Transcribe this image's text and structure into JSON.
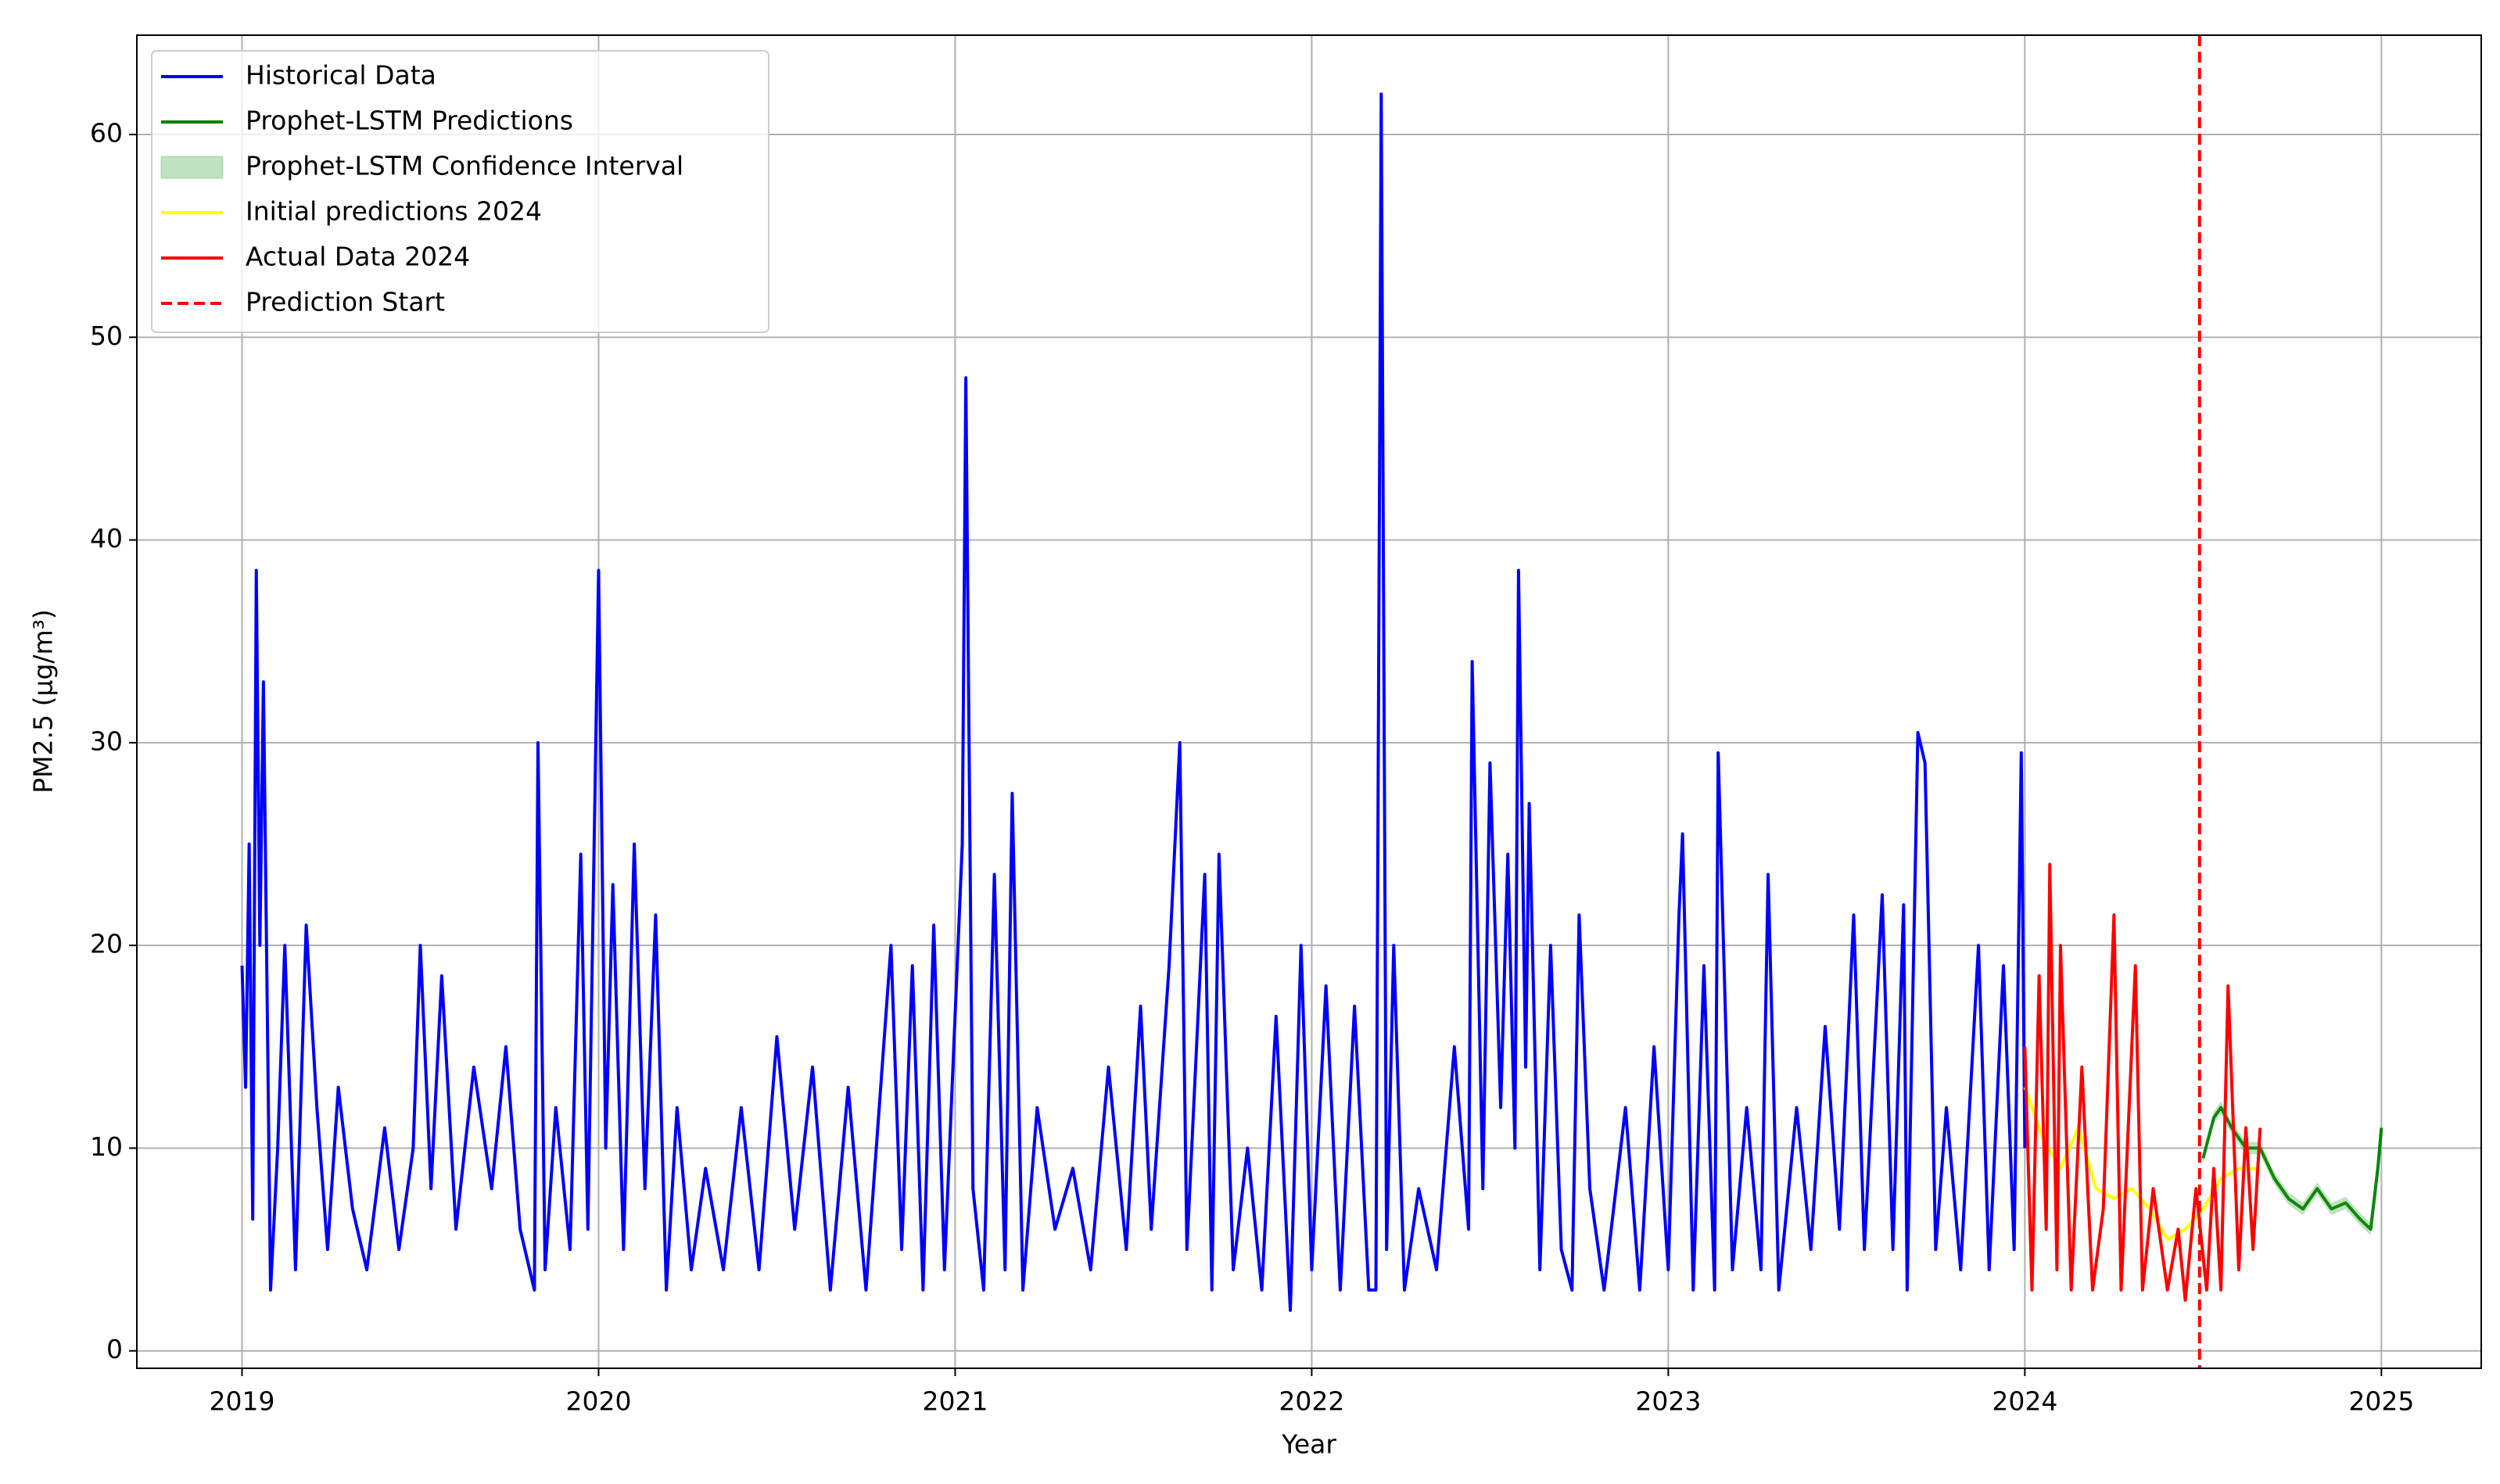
{
  "chart_data": {
    "type": "line",
    "xlabel": "Year",
    "ylabel": "PM2.5 (µg/m³)",
    "xlim": [
      2018.705,
      2025.28
    ],
    "ylim": [
      -0.86,
      64.9
    ],
    "xticks": [
      2019,
      2020,
      2021,
      2022,
      2023,
      2024,
      2025
    ],
    "yticks": [
      0,
      10,
      20,
      30,
      40,
      50,
      60
    ],
    "grid": true,
    "legend": "upper left",
    "series": [
      {
        "name": "Historical Data",
        "color": "#0000ff",
        "x": [
          2019.0,
          2019.01,
          2019.02,
          2019.03,
          2019.04,
          2019.05,
          2019.06,
          2019.08,
          2019.1,
          2019.12,
          2019.15,
          2019.18,
          2019.21,
          2019.24,
          2019.27,
          2019.31,
          2019.35,
          2019.4,
          2019.44,
          2019.48,
          2019.5,
          2019.53,
          2019.56,
          2019.6,
          2019.65,
          2019.7,
          2019.74,
          2019.78,
          2019.82,
          2019.83,
          2019.85,
          2019.88,
          2019.92,
          2019.95,
          2019.97,
          2020.0,
          2020.02,
          2020.04,
          2020.07,
          2020.1,
          2020.13,
          2020.16,
          2020.19,
          2020.22,
          2020.26,
          2020.3,
          2020.35,
          2020.4,
          2020.45,
          2020.5,
          2020.55,
          2020.6,
          2020.65,
          2020.7,
          2020.75,
          2020.82,
          2020.85,
          2020.88,
          2020.91,
          2020.94,
          2020.97,
          2021.02,
          2021.03,
          2021.05,
          2021.08,
          2021.11,
          2021.14,
          2021.16,
          2021.19,
          2021.23,
          2021.28,
          2021.33,
          2021.38,
          2021.43,
          2021.48,
          2021.52,
          2021.55,
          2021.6,
          2021.63,
          2021.65,
          2021.7,
          2021.72,
          2021.74,
          2021.78,
          2021.82,
          2021.86,
          2021.9,
          2021.94,
          2021.97,
          2022.0,
          2022.04,
          2022.08,
          2022.12,
          2022.16,
          2022.18,
          2022.195,
          2022.21,
          2022.23,
          2022.26,
          2022.3,
          2022.35,
          2022.4,
          2022.44,
          2022.45,
          2022.48,
          2022.5,
          2022.53,
          2022.55,
          2022.57,
          2022.58,
          2022.6,
          2022.61,
          2022.64,
          2022.67,
          2022.7,
          2022.73,
          2022.75,
          2022.78,
          2022.82,
          2022.88,
          2022.92,
          2022.96,
          2023.0,
          2023.03,
          2023.04,
          2023.07,
          2023.1,
          2023.13,
          2023.14,
          2023.18,
          2023.22,
          2023.26,
          2023.28,
          2023.31,
          2023.36,
          2023.4,
          2023.44,
          2023.48,
          2023.52,
          2023.55,
          2023.6,
          2023.63,
          2023.66,
          2023.67,
          2023.7,
          2023.72,
          2023.75,
          2023.78,
          2023.82,
          2023.87,
          2023.9,
          2023.94,
          2023.97,
          2023.99,
          2024.0
        ],
        "values": [
          19,
          13,
          25,
          6.5,
          38.5,
          20,
          33,
          3,
          10,
          20,
          4,
          21,
          12,
          5,
          13,
          7,
          4,
          11,
          5,
          10,
          20,
          8,
          18.5,
          6,
          14,
          8,
          15,
          6,
          3,
          30,
          4,
          12,
          5,
          24.5,
          6,
          38.5,
          10,
          23,
          5,
          25,
          8,
          21.5,
          3,
          12,
          4,
          9,
          4,
          12,
          4,
          15.5,
          6,
          14,
          3,
          13,
          3,
          20,
          5,
          19,
          3,
          21,
          4,
          25,
          48,
          8,
          3,
          23.5,
          4,
          27.5,
          3,
          12,
          6,
          9,
          4,
          14,
          5,
          17,
          6,
          19,
          30,
          5,
          23.5,
          3,
          24.5,
          4,
          10,
          3,
          16.5,
          2,
          20,
          4,
          18,
          3,
          17,
          3,
          3,
          62,
          5,
          20,
          3,
          8,
          4,
          15,
          6,
          34,
          8,
          29,
          12,
          24.5,
          10,
          38.5,
          14,
          27,
          4,
          20,
          5,
          3,
          21.5,
          8,
          3,
          12,
          3,
          15,
          4,
          21.5,
          25.5,
          3,
          19,
          3,
          29.5,
          4,
          12,
          4,
          23.5,
          3,
          12,
          5,
          16,
          6,
          21.5,
          5,
          22.5,
          5,
          22,
          3,
          30.5,
          29,
          5,
          12,
          4,
          20,
          4,
          19,
          5,
          29.5,
          10
        ]
      },
      {
        "name": "Prophet-LSTM Predictions",
        "color": "#008000",
        "x": [
          2024.5,
          2024.53,
          2024.55,
          2024.58,
          2024.62,
          2024.66,
          2024.7,
          2024.74,
          2024.78,
          2024.82,
          2024.86,
          2024.9,
          2024.94,
          2024.97,
          2024.99,
          2025.0
        ],
        "values": [
          9.5,
          11.5,
          12,
          11,
          10,
          10,
          8.5,
          7.5,
          7,
          8,
          7,
          7.3,
          6.5,
          6,
          9,
          11
        ]
      },
      {
        "name": "Prophet-LSTM Confidence Interval",
        "color": "#2ca02c",
        "kind": "band",
        "x": [
          2024.5,
          2024.53,
          2024.55,
          2024.58,
          2024.62,
          2024.66,
          2024.7,
          2024.74,
          2024.78,
          2024.82,
          2024.86,
          2024.9,
          2024.94,
          2024.97,
          2024.99,
          2025.0
        ],
        "lower": [
          9.2,
          11.2,
          11.7,
          10.7,
          9.7,
          9.7,
          8.2,
          7.2,
          6.7,
          7.7,
          6.7,
          7.0,
          6.2,
          5.7,
          8.7,
          10.7
        ],
        "upper": [
          9.8,
          11.8,
          12.3,
          11.3,
          10.3,
          10.3,
          8.8,
          7.8,
          7.3,
          8.3,
          7.3,
          7.6,
          6.8,
          6.3,
          9.3,
          11.3
        ]
      },
      {
        "name": "Initial predictions 2024",
        "color": "#ffff00",
        "x": [
          2024.0,
          2024.05,
          2024.1,
          2024.15,
          2024.2,
          2024.25,
          2024.3,
          2024.35,
          2024.4,
          2024.45,
          2024.5,
          2024.55,
          2024.6,
          2024.66
        ],
        "values": [
          13,
          10.5,
          9,
          11,
          8,
          7.5,
          8,
          7,
          5.5,
          6,
          7,
          8.5,
          9,
          9
        ]
      },
      {
        "name": "Actual Data 2024",
        "color": "#ff0000",
        "x": [
          2024.0,
          2024.02,
          2024.04,
          2024.06,
          2024.07,
          2024.09,
          2024.1,
          2024.13,
          2024.16,
          2024.19,
          2024.22,
          2024.25,
          2024.27,
          2024.31,
          2024.33,
          2024.36,
          2024.4,
          2024.43,
          2024.45,
          2024.48,
          2024.51,
          2024.53,
          2024.55,
          2024.57,
          2024.6,
          2024.62,
          2024.64,
          2024.66
        ],
        "values": [
          15,
          3,
          18.5,
          6,
          24,
          4,
          20,
          3,
          14,
          3,
          7,
          21.5,
          3,
          19,
          3,
          8,
          3,
          6,
          2.5,
          8,
          3,
          9,
          3,
          18,
          4,
          11,
          5,
          11
        ]
      }
    ],
    "vlines": [
      {
        "name": "Prediction Start",
        "color": "#ff0000",
        "x": 2024.49,
        "dashed": true
      }
    ]
  }
}
